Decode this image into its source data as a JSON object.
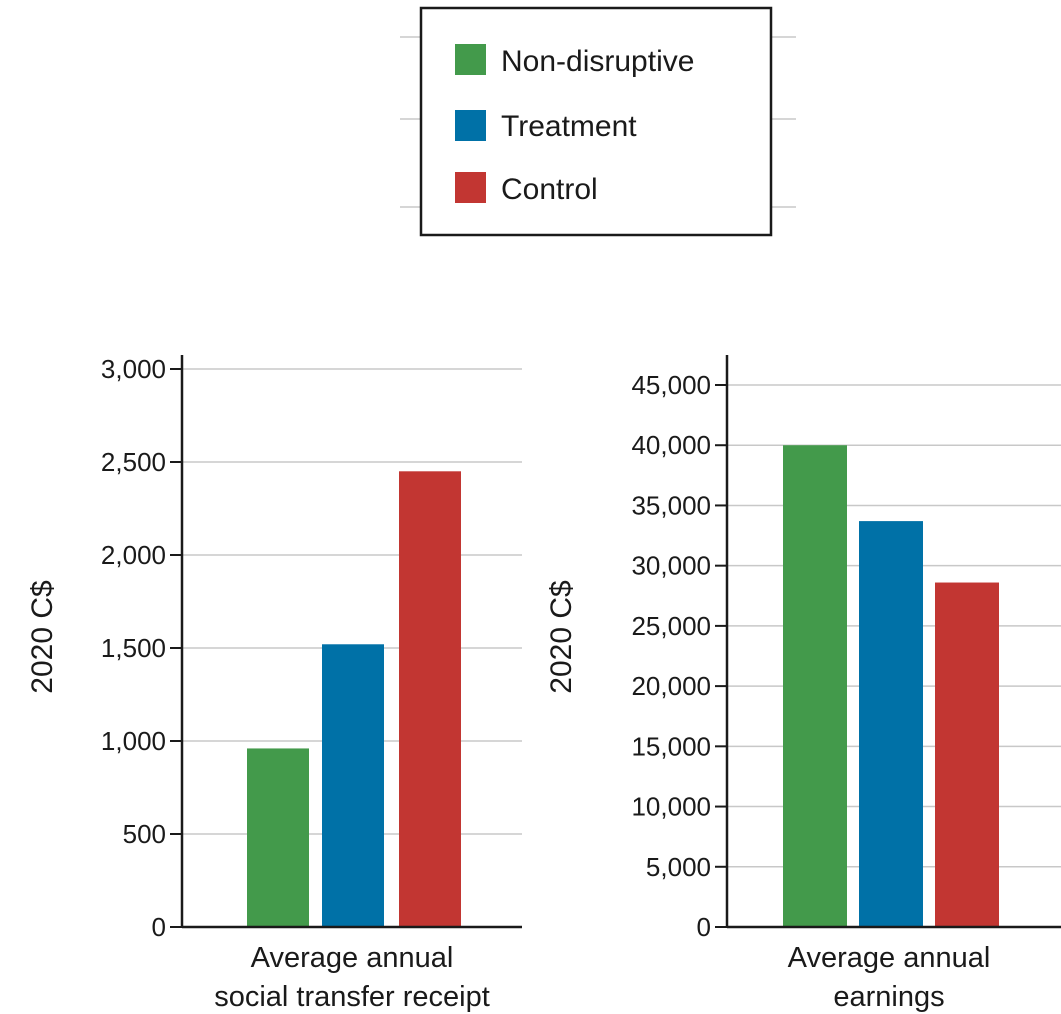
{
  "legend": {
    "entries": [
      {
        "label": "Non-disruptive",
        "color": "#439a4b"
      },
      {
        "label": "Treatment",
        "color": "#0071a7"
      },
      {
        "label": "Control",
        "color": "#c23632"
      }
    ]
  },
  "chart_data": [
    {
      "type": "bar",
      "categories": [
        "Non-disruptive",
        "Treatment",
        "Control"
      ],
      "values": [
        960,
        1520,
        2450
      ],
      "colors": [
        "#439a4b",
        "#0071a7",
        "#c23632"
      ],
      "ylabel": "2020 C$",
      "xlabel_lines": [
        "Average annual",
        "social transfer receipt"
      ],
      "ylim": [
        0,
        3000
      ],
      "yticks": [
        0,
        500,
        1000,
        1500,
        2000,
        2500,
        3000
      ],
      "ytick_labels": [
        "0",
        "500",
        "1,000",
        "1,500",
        "2,000",
        "2,500",
        "3,000"
      ],
      "grid": true
    },
    {
      "type": "bar",
      "categories": [
        "Non-disruptive",
        "Treatment",
        "Control"
      ],
      "values": [
        40000,
        33700,
        28600
      ],
      "colors": [
        "#439a4b",
        "#0071a7",
        "#c23632"
      ],
      "ylabel": "2020 C$",
      "xlabel_lines": [
        "Average annual",
        "earnings"
      ],
      "ylim": [
        0,
        45000
      ],
      "yticks": [
        0,
        5000,
        10000,
        15000,
        20000,
        25000,
        30000,
        35000,
        40000,
        45000
      ],
      "ytick_labels": [
        "0",
        "5,000",
        "10,000",
        "15,000",
        "20,000",
        "25,000",
        "30,000",
        "35,000",
        "40,000",
        "45,000"
      ],
      "grid": true
    }
  ]
}
